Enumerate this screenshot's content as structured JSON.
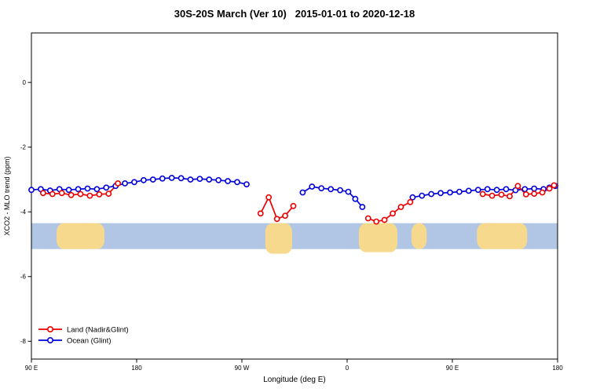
{
  "legend": [
    {
      "label": "Land (Nadir&Glint)",
      "color": "#ee0000"
    },
    {
      "label": "Ocean (Glint)",
      "color": "#0000dd"
    }
  ],
  "chart_data": {
    "type": "line",
    "title": "30S-20S March (Ver 10)   2015-01-01 to 2020-12-18",
    "xlabel": "Longitude (deg E)",
    "ylabel": "XCO2 - MLO trend (ppm)",
    "x_axis": {
      "note": "axis runs 90E eastward around globe to 180; positions are degrees along axis",
      "range_deg_along_axis": [
        0,
        450
      ],
      "ticks": [
        0,
        90,
        180,
        270,
        360,
        450
      ],
      "tick_labels": [
        "90 E",
        "180",
        "90 W",
        "0",
        "90 E",
        "180"
      ]
    },
    "y_axis": {
      "range": [
        -8.55,
        1.53
      ],
      "ticks": [
        0,
        -2,
        -4,
        -6,
        -8
      ],
      "tick_labels": [
        "0",
        "-2",
        "-4",
        "-6",
        "-8"
      ]
    },
    "series": [
      {
        "name": "Ocean (Glint)",
        "color": "#0000dd",
        "segments": [
          [
            [
              0,
              -3.32
            ],
            [
              8,
              -3.3
            ],
            [
              16,
              -3.34
            ],
            [
              24,
              -3.3
            ],
            [
              32,
              -3.32
            ],
            [
              40,
              -3.3
            ],
            [
              48,
              -3.28
            ],
            [
              56,
              -3.3
            ],
            [
              64,
              -3.25
            ],
            [
              72,
              -3.2
            ],
            [
              80,
              -3.12
            ],
            [
              88,
              -3.08
            ],
            [
              96,
              -3.02
            ],
            [
              104,
              -3.0
            ],
            [
              112,
              -2.97
            ],
            [
              120,
              -2.95
            ],
            [
              128,
              -2.96
            ],
            [
              136,
              -3.0
            ],
            [
              144,
              -2.98
            ],
            [
              152,
              -3.0
            ],
            [
              160,
              -3.02
            ],
            [
              168,
              -3.05
            ],
            [
              176,
              -3.08
            ],
            [
              184,
              -3.15
            ]
          ],
          [
            [
              232,
              -3.4
            ],
            [
              240,
              -3.22
            ],
            [
              248,
              -3.27
            ],
            [
              256,
              -3.3
            ],
            [
              264,
              -3.33
            ],
            [
              271,
              -3.38
            ],
            [
              277,
              -3.6
            ],
            [
              283,
              -3.85
            ]
          ],
          [
            [
              326,
              -3.55
            ],
            [
              334,
              -3.5
            ],
            [
              342,
              -3.45
            ],
            [
              350,
              -3.42
            ],
            [
              358,
              -3.4
            ],
            [
              366,
              -3.38
            ],
            [
              374,
              -3.35
            ],
            [
              382,
              -3.32
            ],
            [
              390,
              -3.3
            ],
            [
              398,
              -3.32
            ],
            [
              406,
              -3.3
            ],
            [
              414,
              -3.33
            ],
            [
              422,
              -3.3
            ],
            [
              430,
              -3.28
            ],
            [
              438,
              -3.3
            ],
            [
              443,
              -3.25
            ],
            [
              448,
              -3.2
            ]
          ]
        ]
      },
      {
        "name": "Land (Nadir&Glint)",
        "color": "#ee0000",
        "segments": [
          [
            [
              10,
              -3.42
            ],
            [
              18,
              -3.45
            ],
            [
              26,
              -3.42
            ],
            [
              34,
              -3.48
            ],
            [
              42,
              -3.45
            ],
            [
              50,
              -3.5
            ],
            [
              58,
              -3.46
            ],
            [
              66,
              -3.44
            ],
            [
              74,
              -3.12
            ]
          ],
          [
            [
              196,
              -4.05
            ],
            [
              203,
              -3.55
            ],
            [
              210,
              -4.22
            ],
            [
              217,
              -4.12
            ],
            [
              224,
              -3.82
            ]
          ],
          [
            [
              288,
              -4.2
            ],
            [
              295,
              -4.3
            ],
            [
              302,
              -4.25
            ],
            [
              309,
              -4.05
            ],
            [
              316,
              -3.85
            ],
            [
              324,
              -3.7
            ]
          ],
          [
            [
              386,
              -3.45
            ],
            [
              394,
              -3.5
            ],
            [
              402,
              -3.47
            ],
            [
              409,
              -3.52
            ],
            [
              416,
              -3.2
            ],
            [
              423,
              -3.46
            ],
            [
              430,
              -3.44
            ],
            [
              437,
              -3.4
            ],
            [
              443,
              -3.28
            ],
            [
              447,
              -3.18
            ]
          ]
        ]
      }
    ],
    "map_band": {
      "ocean_color": "#b0c6e4",
      "land_color": "#f6d98c",
      "y_top": -4.35,
      "y_bottom": -5.15,
      "land_blocks_deg": [
        [
          21.5,
          62.5,
          0
        ],
        [
          200,
          223,
          6
        ],
        [
          280,
          313,
          4
        ],
        [
          325,
          338,
          0
        ],
        [
          381,
          424,
          0
        ]
      ]
    }
  }
}
